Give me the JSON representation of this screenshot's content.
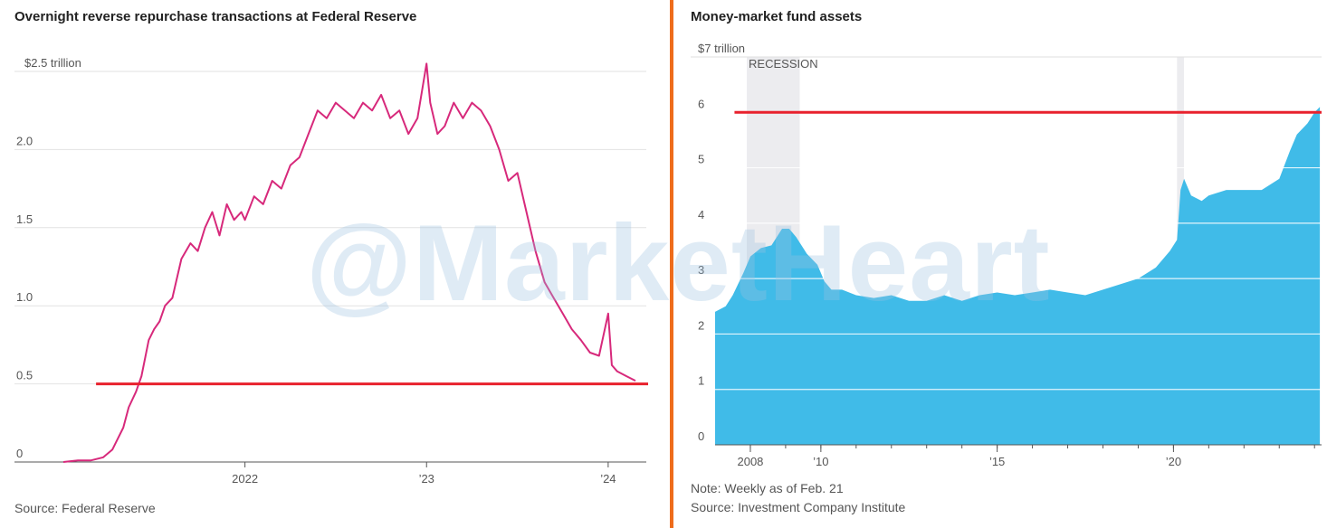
{
  "watermark": "@MarketHeart",
  "chart_data": [
    {
      "type": "line",
      "title": "Overnight reverse repurchase transactions at Federal Reserve",
      "source": "Source: Federal Reserve",
      "ylim": [
        0,
        2.5
      ],
      "yticks": [
        {
          "v": 0,
          "label": "0"
        },
        {
          "v": 0.5,
          "label": "0.5"
        },
        {
          "v": 1.0,
          "label": "1.0"
        },
        {
          "v": 1.5,
          "label": "1.5"
        },
        {
          "v": 2.0,
          "label": "2.0"
        },
        {
          "v": 2.5,
          "label": "$2.5 trillion"
        }
      ],
      "xlim": [
        2021.0,
        2024.2
      ],
      "xticks": [
        {
          "v": 2022,
          "label": "2022"
        },
        {
          "v": 2023,
          "label": "’23"
        },
        {
          "v": 2024,
          "label": "’24"
        }
      ],
      "reference_line": {
        "value": 0.5,
        "from": 2021.18,
        "to": 2024.22,
        "color": "#e8212d"
      },
      "series": [
        {
          "name": "Overnight reverse repo",
          "color": "#d7297b",
          "x": [
            2021.0,
            2021.08,
            2021.15,
            2021.22,
            2021.27,
            2021.3,
            2021.33,
            2021.36,
            2021.4,
            2021.43,
            2021.47,
            2021.5,
            2021.53,
            2021.56,
            2021.6,
            2021.65,
            2021.7,
            2021.74,
            2021.78,
            2021.82,
            2021.86,
            2021.9,
            2021.94,
            2021.98,
            2022.0,
            2022.05,
            2022.1,
            2022.15,
            2022.2,
            2022.25,
            2022.3,
            2022.35,
            2022.4,
            2022.45,
            2022.5,
            2022.55,
            2022.6,
            2022.65,
            2022.7,
            2022.75,
            2022.8,
            2022.85,
            2022.9,
            2022.95,
            2023.0,
            2023.02,
            2023.06,
            2023.1,
            2023.15,
            2023.2,
            2023.25,
            2023.3,
            2023.35,
            2023.4,
            2023.45,
            2023.5,
            2023.55,
            2023.6,
            2023.65,
            2023.7,
            2023.75,
            2023.8,
            2023.85,
            2023.9,
            2023.95,
            2024.0,
            2024.02,
            2024.05,
            2024.1,
            2024.15
          ],
          "values": [
            0.0,
            0.01,
            0.01,
            0.03,
            0.08,
            0.15,
            0.22,
            0.35,
            0.45,
            0.55,
            0.78,
            0.85,
            0.9,
            1.0,
            1.05,
            1.3,
            1.4,
            1.35,
            1.5,
            1.6,
            1.45,
            1.65,
            1.55,
            1.6,
            1.55,
            1.7,
            1.65,
            1.8,
            1.75,
            1.9,
            1.95,
            2.1,
            2.25,
            2.2,
            2.3,
            2.25,
            2.2,
            2.3,
            2.25,
            2.35,
            2.2,
            2.25,
            2.1,
            2.2,
            2.55,
            2.3,
            2.1,
            2.15,
            2.3,
            2.2,
            2.3,
            2.25,
            2.15,
            2.0,
            1.8,
            1.85,
            1.6,
            1.35,
            1.15,
            1.05,
            0.95,
            0.85,
            0.78,
            0.7,
            0.68,
            0.95,
            0.62,
            0.58,
            0.55,
            0.52
          ]
        }
      ]
    },
    {
      "type": "area",
      "title": "Money-market fund assets",
      "note": "Note: Weekly as of Feb. 21",
      "source": "Source: Investment Company Institute",
      "ylim": [
        0,
        7
      ],
      "yticks": [
        {
          "v": 0,
          "label": "0"
        },
        {
          "v": 1,
          "label": "1"
        },
        {
          "v": 2,
          "label": "2"
        },
        {
          "v": 3,
          "label": "3"
        },
        {
          "v": 4,
          "label": "4"
        },
        {
          "v": 5,
          "label": "5"
        },
        {
          "v": 6,
          "label": "6"
        },
        {
          "v": 7,
          "label": "$7 trillion"
        }
      ],
      "xlim": [
        2007.0,
        2024.2
      ],
      "xticks": [
        {
          "v": 2008,
          "label": "2008"
        },
        {
          "v": 2010,
          "label": "’10"
        },
        {
          "v": 2015,
          "label": "’15"
        },
        {
          "v": 2020,
          "label": "’20"
        }
      ],
      "recessions": [
        {
          "from": 2007.9,
          "to": 2009.4,
          "label": "RECESSION"
        },
        {
          "from": 2020.1,
          "to": 2020.3,
          "label": ""
        }
      ],
      "reference_line": {
        "value": 6.0,
        "from": 2007.55,
        "to": 2024.2,
        "color": "#e8212d"
      },
      "series": [
        {
          "name": "Money-market fund assets",
          "color": "#40bbe8",
          "x": [
            2007.0,
            2007.3,
            2007.5,
            2007.8,
            2008.0,
            2008.3,
            2008.6,
            2008.9,
            2009.1,
            2009.3,
            2009.6,
            2009.9,
            2010.1,
            2010.3,
            2010.6,
            2011.0,
            2011.5,
            2012.0,
            2012.5,
            2013.0,
            2013.5,
            2014.0,
            2014.5,
            2015.0,
            2015.5,
            2016.0,
            2016.5,
            2017.0,
            2017.5,
            2018.0,
            2018.5,
            2019.0,
            2019.5,
            2019.9,
            2020.1,
            2020.2,
            2020.3,
            2020.5,
            2020.8,
            2021.0,
            2021.5,
            2022.0,
            2022.5,
            2023.0,
            2023.3,
            2023.5,
            2023.8,
            2024.0,
            2024.15
          ],
          "values": [
            2.4,
            2.5,
            2.7,
            3.1,
            3.4,
            3.55,
            3.6,
            3.9,
            3.9,
            3.75,
            3.45,
            3.25,
            2.95,
            2.8,
            2.8,
            2.7,
            2.65,
            2.7,
            2.6,
            2.6,
            2.7,
            2.6,
            2.7,
            2.75,
            2.7,
            2.75,
            2.8,
            2.75,
            2.7,
            2.8,
            2.9,
            3.0,
            3.2,
            3.5,
            3.7,
            4.6,
            4.8,
            4.5,
            4.4,
            4.5,
            4.6,
            4.6,
            4.6,
            4.8,
            5.3,
            5.6,
            5.8,
            6.0,
            6.1
          ]
        }
      ]
    }
  ]
}
